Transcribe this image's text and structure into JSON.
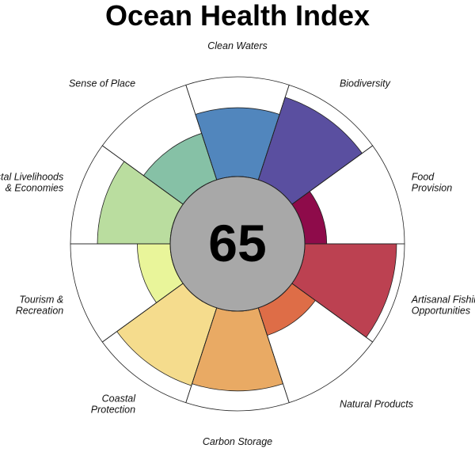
{
  "chart_data": {
    "type": "flower",
    "title": "Ocean Health Index",
    "score": "65",
    "max_value": 100,
    "petals": [
      {
        "label": [
          "Food",
          "Provision"
        ],
        "value": 22,
        "color": "#8e0b4a"
      },
      {
        "label": [
          "Biodiversity"
        ],
        "value": 87,
        "color": "#5a4fa0"
      },
      {
        "label": [
          "Clean Waters"
        ],
        "value": 69,
        "color": "#5186bd"
      },
      {
        "label": [
          "Sense of Place"
        ],
        "value": 49,
        "color": "#86c1a6"
      },
      {
        "label": [
          "Coastal Livelihoods",
          "& Economies"
        ],
        "value": 73,
        "color": "#badd9f"
      },
      {
        "label": [
          "Tourism &",
          "Recreation"
        ],
        "value": 33,
        "color": "#e9f59a"
      },
      {
        "label": [
          "Coastal",
          "Protection"
        ],
        "value": 82,
        "color": "#f5dc8d"
      },
      {
        "label": [
          "Carbon Storage"
        ],
        "value": 80,
        "color": "#e9aa64"
      },
      {
        "label": [
          "Natural Products"
        ],
        "value": 29,
        "color": "#de6d47"
      },
      {
        "label": [
          "Artisanal Fishing",
          "Opportunities"
        ],
        "value": 92,
        "color": "#bc4151"
      }
    ]
  }
}
